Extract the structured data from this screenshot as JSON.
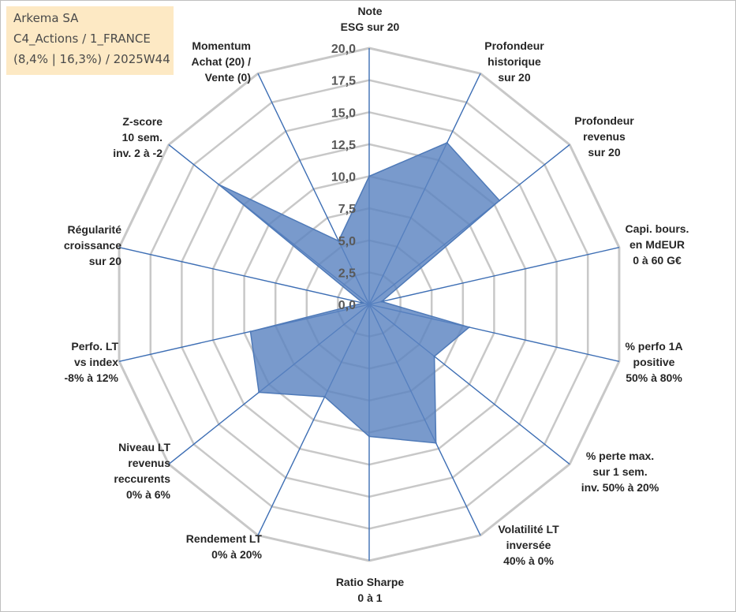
{
  "title_box": {
    "line1": "Arkema SA",
    "line2": "C4_Actions / 1_FRANCE",
    "line3": "(8,4% | 16,3%) / 2025W44"
  },
  "chart_data": {
    "type": "radar",
    "title": "Arkema SA",
    "rmin": 0,
    "rmax": 20,
    "ticks": [
      0,
      2.5,
      5,
      7.5,
      10,
      12.5,
      15,
      17.5,
      20
    ],
    "tick_labels": [
      "0,0",
      "2,5",
      "5,0",
      "7,5",
      "10,0",
      "12,5",
      "15,0",
      "17,5",
      "20,0"
    ],
    "axes": [
      {
        "label": [
          "Note",
          "ESG sur 20"
        ],
        "value": 10.0
      },
      {
        "label": [
          "Profondeur",
          "historique",
          "sur 20"
        ],
        "value": 14.0
      },
      {
        "label": [
          "Profondeur",
          "revenus",
          "sur 20"
        ],
        "value": 13.0
      },
      {
        "label": [
          "Capi. bours.",
          "en MdEUR",
          "0 à 60 G€"
        ],
        "value": 1.0
      },
      {
        "label": [
          "% perfo 1A",
          "positive",
          "50% à 80%"
        ],
        "value": 8.0
      },
      {
        "label": [
          "% perte max.",
          "sur 1 sem.",
          "inv. 50% à 20%"
        ],
        "value": 6.5
      },
      {
        "label": [
          "Volatilité LT",
          "inversée",
          "40% à 0%"
        ],
        "value": 12.0
      },
      {
        "label": [
          "Ratio Sharpe",
          "0 à 1"
        ],
        "value": 10.3
      },
      {
        "label": [
          "Rendement LT",
          "0% à 20%"
        ],
        "value": 8.0
      },
      {
        "label": [
          "Niveau LT",
          "revenus",
          "reccurents",
          "0% à 6%"
        ],
        "value": 11.0
      },
      {
        "label": [
          "Perfo. LT",
          "vs index",
          "-8% à 12%"
        ],
        "value": 9.5
      },
      {
        "label": [
          "Régularité",
          "croissance",
          "sur 20"
        ],
        "value": 0.5
      },
      {
        "label": [
          "Z-score",
          "10 sem.",
          "inv. 2 à -2"
        ],
        "value": 15.0
      },
      {
        "label": [
          "Momentum",
          "Achat (20) /",
          "Vente (0)"
        ],
        "value": 5.5
      }
    ],
    "colors": {
      "grid": "#c8c8c8",
      "spoke": "#3d6eb4",
      "fill": "#5b84c1",
      "stroke": "#4f7ab8"
    }
  }
}
